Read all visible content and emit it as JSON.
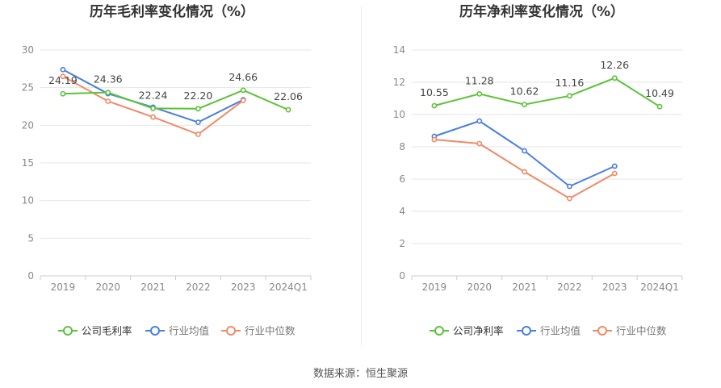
{
  "colors": {
    "company": "#5cc23a",
    "industry_avg": "#4a7ee0",
    "industry_median": "#f08a65",
    "grid": "#e6e6e6",
    "axis_text": "#888888",
    "title_text": "#333333"
  },
  "chart_data": [
    {
      "type": "line",
      "title": "历年毛利率变化情况（%）",
      "categories": [
        "2019",
        "2020",
        "2021",
        "2022",
        "2023",
        "2024Q1"
      ],
      "ylim": [
        0,
        30
      ],
      "yticks": [
        0,
        5,
        10,
        15,
        20,
        25,
        30
      ],
      "grid": true,
      "legend_position": "bottom",
      "series": [
        {
          "name": "公司毛利率",
          "color_key": "company",
          "values": [
            24.19,
            24.36,
            22.24,
            22.2,
            24.66,
            22.06
          ],
          "labels": [
            "24.19",
            "24.36",
            "22.24",
            "22.20",
            "24.66",
            "22.06"
          ]
        },
        {
          "name": "行业均值",
          "color_key": "industry_avg",
          "values": [
            27.4,
            24.2,
            22.4,
            20.4,
            23.4,
            null
          ]
        },
        {
          "name": "行业中位数",
          "color_key": "industry_median",
          "values": [
            26.5,
            23.2,
            21.1,
            18.8,
            23.3,
            null
          ]
        }
      ]
    },
    {
      "type": "line",
      "title": "历年净利率变化情况（%）",
      "categories": [
        "2019",
        "2020",
        "2021",
        "2022",
        "2023",
        "2024Q1"
      ],
      "ylim": [
        0,
        14
      ],
      "yticks": [
        0,
        2,
        4,
        6,
        8,
        10,
        12,
        14
      ],
      "grid": true,
      "legend_position": "bottom",
      "series": [
        {
          "name": "公司净利率",
          "color_key": "company",
          "values": [
            10.55,
            11.28,
            10.62,
            11.16,
            12.26,
            10.49
          ],
          "labels": [
            "10.55",
            "11.28",
            "10.62",
            "11.16",
            "12.26",
            "10.49"
          ]
        },
        {
          "name": "行业均值",
          "color_key": "industry_avg",
          "values": [
            8.65,
            9.6,
            7.75,
            5.55,
            6.8,
            null
          ]
        },
        {
          "name": "行业中位数",
          "color_key": "industry_median",
          "values": [
            8.45,
            8.2,
            6.45,
            4.8,
            6.35,
            null
          ]
        }
      ]
    }
  ],
  "footer": {
    "source": "数据来源：恒生聚源"
  }
}
